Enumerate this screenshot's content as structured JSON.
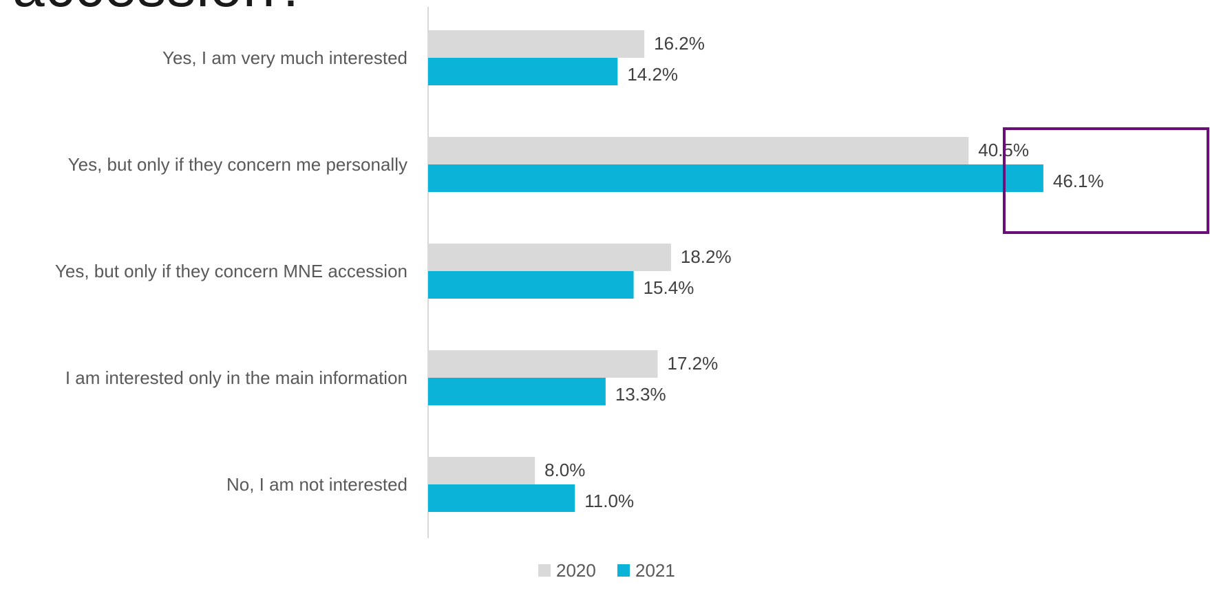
{
  "title_fragment": "accession?",
  "chart_data": {
    "type": "bar",
    "orientation": "horizontal",
    "categories": [
      "Yes, I am very much interested",
      "Yes, but only if they concern me personally",
      "Yes, but only if they concern MNE accession",
      "I am interested only in the main information",
      "No, I am not interested"
    ],
    "series": [
      {
        "name": "2020",
        "color": "#d9d9d9",
        "values": [
          16.2,
          40.5,
          18.2,
          17.2,
          8.0
        ],
        "labels": [
          "16.2%",
          "40.5%",
          "18.2%",
          "17.2%",
          "8.0%"
        ]
      },
      {
        "name": "2021",
        "color": "#0bb3d9",
        "values": [
          14.2,
          46.1,
          15.4,
          13.3,
          11.0
        ],
        "labels": [
          "14.2%",
          "46.1%",
          "15.4%",
          "13.3%",
          "11.0%"
        ]
      }
    ],
    "xlim": [
      0,
      50
    ],
    "grid": false,
    "legend_position": "bottom",
    "highlight": {
      "category_index": 1,
      "color": "#6a0f7a"
    }
  }
}
